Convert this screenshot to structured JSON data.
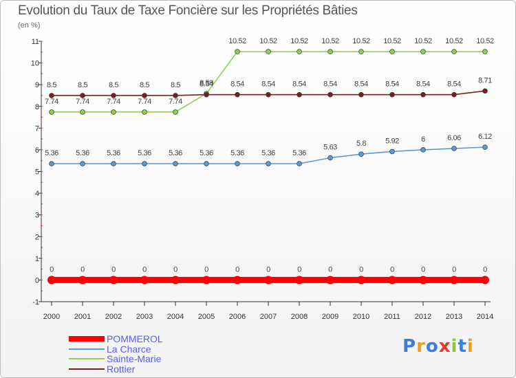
{
  "title": "Evolution du Taux de Taxe Foncière sur les Propriétés Bâties",
  "unit": "(en %)",
  "logo": "Proxiti",
  "chart_data": {
    "type": "line",
    "title": "Evolution du Taux de Taxe Foncière sur les Propriétés Bâties",
    "ylabel": "(en %)",
    "xlabel": "",
    "ylim": [
      -1,
      11
    ],
    "yticks": [
      "-1",
      "0",
      "1",
      "2",
      "3",
      "4",
      "5",
      "6",
      "7",
      "8",
      "9",
      "10",
      "11"
    ],
    "grid": false,
    "categories": [
      "2000",
      "2001",
      "2002",
      "2003",
      "2004",
      "2005",
      "2006",
      "2007",
      "2008",
      "2009",
      "2010",
      "2011",
      "2012",
      "2013",
      "2014"
    ],
    "series": [
      {
        "name": "POMMEROL",
        "color": "#ff0000",
        "values": [
          0,
          0,
          0,
          0,
          0,
          0,
          0,
          0,
          0,
          0,
          0,
          0,
          0,
          0,
          0
        ],
        "labels": [
          "0",
          "0",
          "0",
          "0",
          "0",
          "0",
          "0",
          "0",
          "0",
          "0",
          "0",
          "0",
          "0",
          "0",
          "0"
        ]
      },
      {
        "name": "La Charce",
        "color": "#5b9bd5",
        "values": [
          5.36,
          5.36,
          5.36,
          5.36,
          5.36,
          5.36,
          5.36,
          5.36,
          5.36,
          5.63,
          5.8,
          5.92,
          6,
          6.06,
          6.12
        ],
        "labels": [
          "5.36",
          "5.36",
          "5.36",
          "5.36",
          "5.36",
          "5.36",
          "5.36",
          "5.36",
          "5.36",
          "5.63",
          "5.8",
          "5.92",
          "6",
          "6.06",
          "6.12"
        ]
      },
      {
        "name": "Sainte-Marie",
        "color": "#8fd14f",
        "values": [
          7.74,
          7.74,
          7.74,
          7.74,
          7.74,
          8.59,
          10.52,
          10.52,
          10.52,
          10.52,
          10.52,
          10.52,
          10.52,
          10.52,
          10.52
        ],
        "labels": [
          "7.74",
          "7.74",
          "7.74",
          "7.74",
          "7.74",
          "8.59",
          "10.52",
          "10.52",
          "10.52",
          "10.52",
          "10.52",
          "10.52",
          "10.52",
          "10.52",
          "10.52"
        ]
      },
      {
        "name": "Rottier",
        "color": "#7a1f1f",
        "values": [
          8.5,
          8.5,
          8.5,
          8.5,
          8.5,
          8.54,
          8.54,
          8.54,
          8.54,
          8.54,
          8.54,
          8.54,
          8.54,
          8.54,
          8.71
        ],
        "labels": [
          "8.5",
          "8.5",
          "8.5",
          "8.5",
          "8.5",
          "8.54",
          "8.54",
          "8.54",
          "8.54",
          "8.54",
          "8.54",
          "8.54",
          "8.54",
          "8.54",
          "8.71"
        ]
      }
    ]
  }
}
